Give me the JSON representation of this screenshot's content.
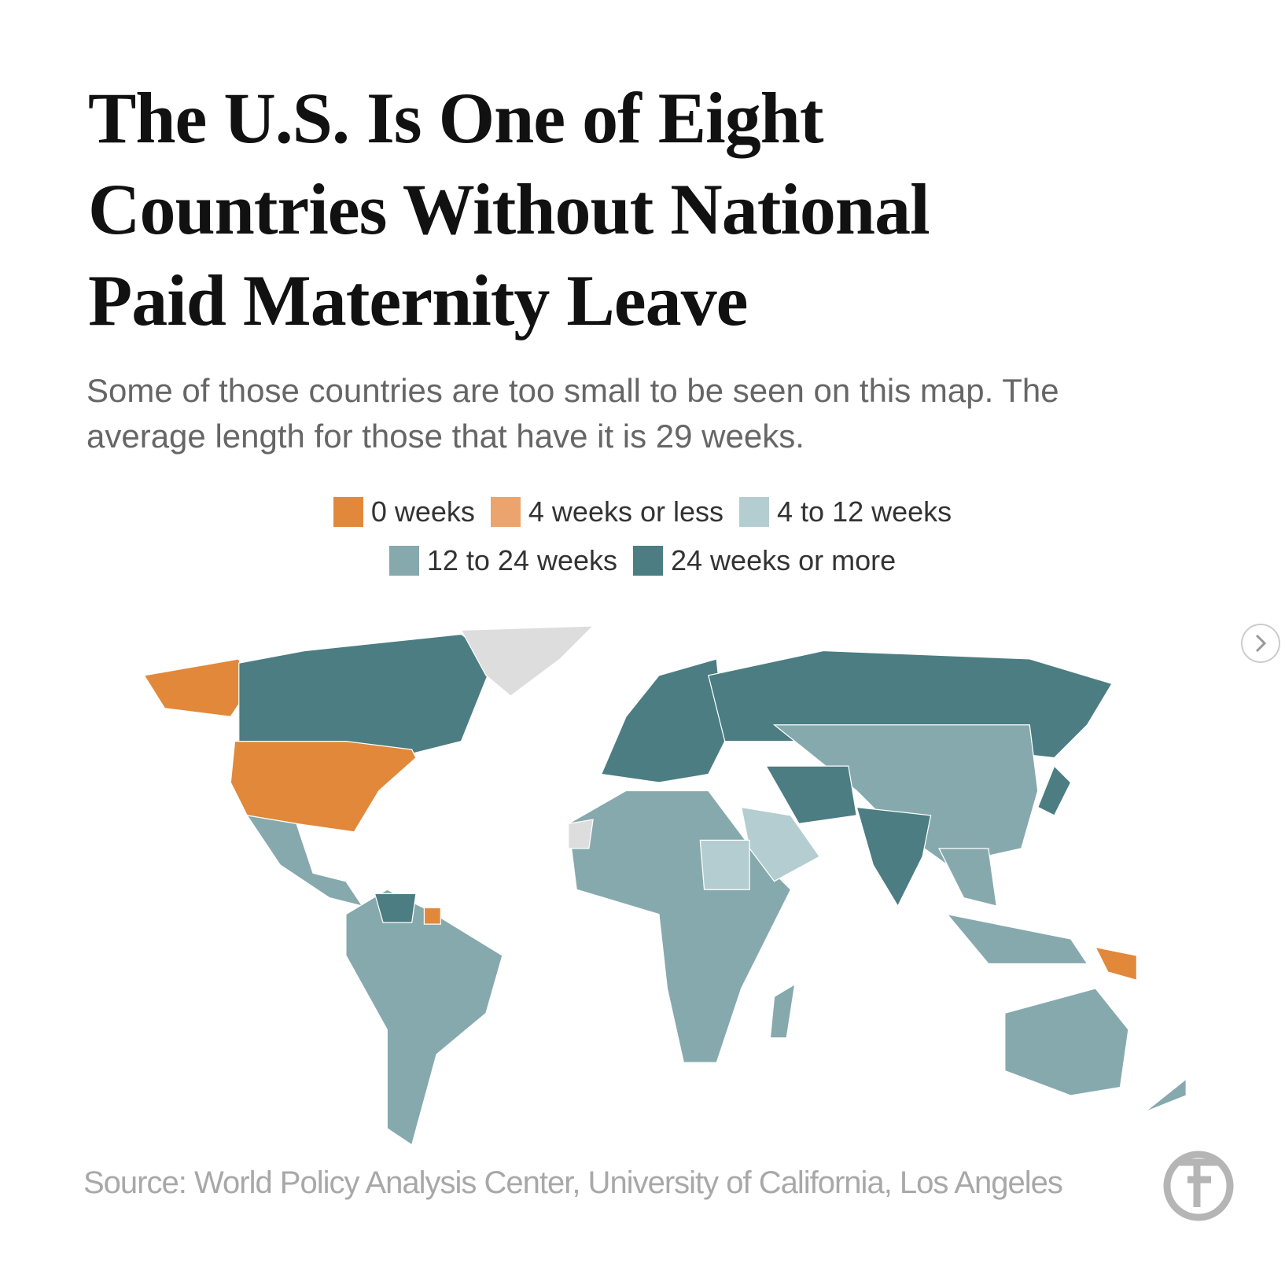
{
  "header": {
    "title": "The U.S. Is One of Eight Countries Without National Paid Maternity Leave",
    "subtitle": "Some of those countries are too small to be seen on this map. The average length for those that have it is 29 weeks."
  },
  "legend": [
    {
      "label": "0 weeks",
      "color": "#e2883a"
    },
    {
      "label": "4 weeks or less",
      "color": "#eba46e"
    },
    {
      "label": "4 to 12 weeks",
      "color": "#b4cdd0"
    },
    {
      "label": "12 to 24 weeks",
      "color": "#86a9ad"
    },
    {
      "label": "24 weeks or more",
      "color": "#4b7d83"
    }
  ],
  "source": "Source: World Policy Analysis Center, University of California, Los Angeles"
}
